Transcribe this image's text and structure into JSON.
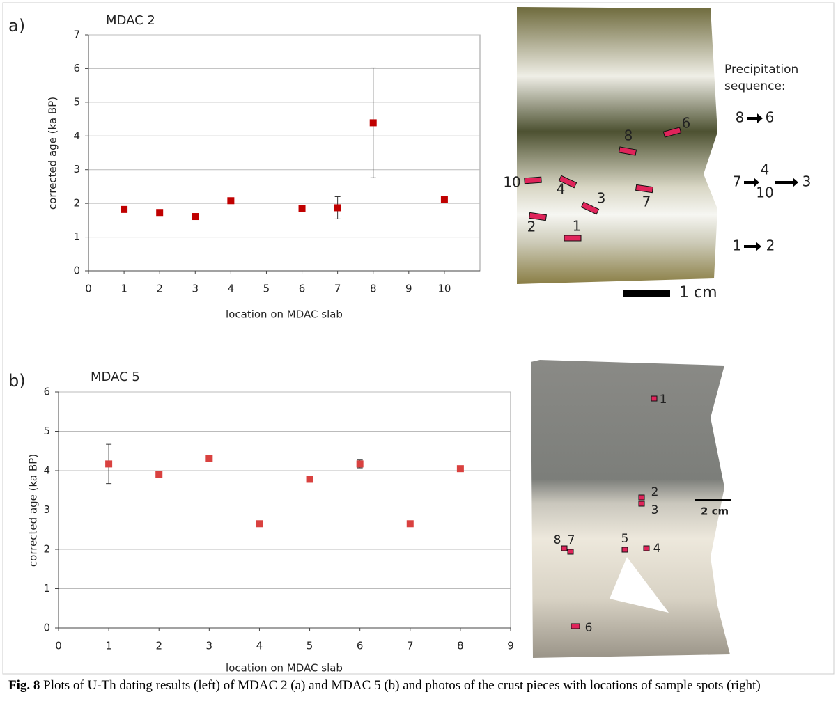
{
  "chart_data": [
    {
      "type": "scatter",
      "panel": "a)",
      "title": "MDAC 2",
      "x_label": "location on MDAC slab",
      "y_label": "corrected age (ka BP)",
      "x": [
        1,
        2,
        3,
        4,
        6,
        7,
        8,
        10
      ],
      "values": [
        1.82,
        1.73,
        1.61,
        2.08,
        1.85,
        1.87,
        4.39,
        2.12
      ],
      "errors": [
        null,
        null,
        null,
        null,
        null,
        0.33,
        1.63,
        null
      ],
      "color": "#c00000",
      "xlim": [
        0,
        11
      ],
      "xticks": [
        0,
        1,
        2,
        3,
        4,
        5,
        6,
        7,
        8,
        9,
        10
      ],
      "ylim": [
        0,
        7
      ],
      "yticks": [
        0,
        1,
        2,
        3,
        4,
        5,
        6,
        7
      ],
      "grid": true
    },
    {
      "type": "scatter",
      "panel": "b)",
      "title": "MDAC 5",
      "x_label": "location on MDAC slab",
      "y_label": "corrected age (ka BP)",
      "x": [
        1,
        2,
        3,
        4,
        5,
        6,
        7,
        8
      ],
      "values": [
        4.17,
        3.91,
        4.31,
        2.65,
        3.78,
        4.17,
        2.65,
        4.05
      ],
      "errors": [
        0.5,
        null,
        null,
        null,
        null,
        0.1,
        null,
        null
      ],
      "color": "#d9413f",
      "xlim": [
        0,
        9
      ],
      "xticks": [
        0,
        1,
        2,
        3,
        4,
        5,
        6,
        7,
        8,
        9
      ],
      "ylim": [
        0,
        6
      ],
      "yticks": [
        0,
        1,
        2,
        3,
        4,
        5,
        6
      ],
      "grid": true
    }
  ],
  "photo_a": {
    "spots": [
      "1",
      "2",
      "3",
      "4",
      "6",
      "7",
      "8",
      "10"
    ],
    "sequence_title": [
      "Precipitation",
      "sequence:"
    ],
    "sequence": [
      [
        "8",
        "6"
      ],
      [
        "7",
        "4",
        "10",
        "3"
      ],
      [
        "1",
        "2"
      ]
    ],
    "scale": "1 cm"
  },
  "photo_b": {
    "spots": [
      "1",
      "2",
      "3",
      "5",
      "4",
      "8",
      "7",
      "6"
    ],
    "scale": "2 cm"
  },
  "caption": {
    "label": "Fig. 8",
    "text": " Plots of U-Th dating results (left) of MDAC 2 (a) and MDAC 5 (b) and photos of the crust pieces with locations of sample spots (right)"
  }
}
